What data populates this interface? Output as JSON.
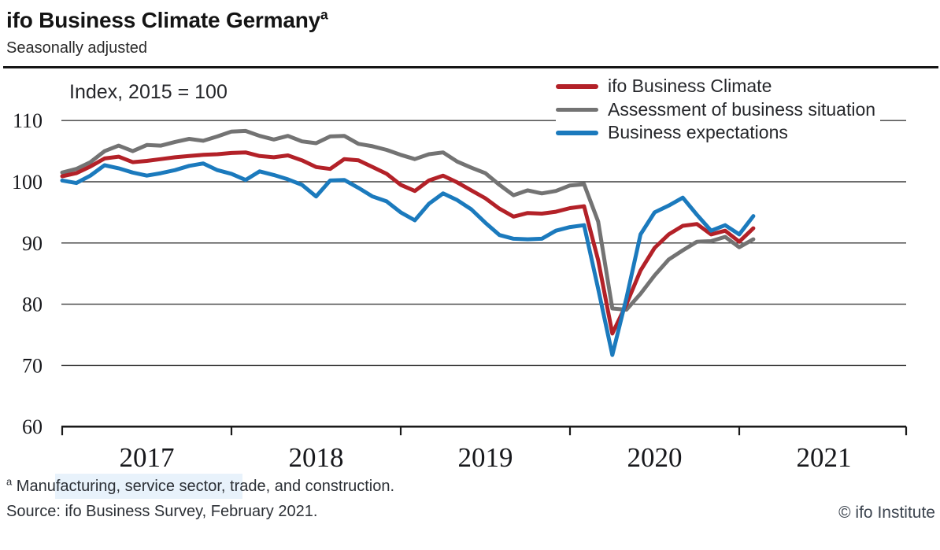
{
  "header": {
    "title": "ifo Business Climate Germany",
    "title_superscript": "a",
    "subtitle": "Seasonally adjusted"
  },
  "chart_data": {
    "type": "line",
    "unit_label": "Index, 2015 = 100",
    "frequency": "monthly",
    "x_start": "2017-01",
    "x_end": "2021-02",
    "x_tick_years": [
      "2017",
      "2018",
      "2019",
      "2020",
      "2021"
    ],
    "y_ticks": [
      110,
      100,
      90,
      80,
      70,
      60
    ],
    "ylim": [
      60,
      112
    ],
    "grid": "horizontal-only",
    "legend_position": "top-right",
    "series": [
      {
        "name": "ifo Business Climate",
        "color": "#b32128",
        "values": [
          100.9,
          101.4,
          102.5,
          103.8,
          104.1,
          103.2,
          103.4,
          103.7,
          104.0,
          104.2,
          104.4,
          104.5,
          104.7,
          104.8,
          104.2,
          104.0,
          104.3,
          103.5,
          102.4,
          102.1,
          103.7,
          103.5,
          102.4,
          101.3,
          99.5,
          98.5,
          100.2,
          101.0,
          99.9,
          98.6,
          97.3,
          95.6,
          94.3,
          94.9,
          94.8,
          95.1,
          95.7,
          96.0,
          87.2,
          75.2,
          80.0,
          85.5,
          89.2,
          91.4,
          92.8,
          93.1,
          91.4,
          92.0,
          90.2,
          92.4
        ]
      },
      {
        "name": "Assessment of business situation",
        "color": "#737373",
        "values": [
          101.5,
          102.1,
          103.2,
          105.0,
          105.9,
          105.0,
          106.0,
          105.9,
          106.5,
          107.0,
          106.7,
          107.4,
          108.2,
          108.3,
          107.5,
          106.9,
          107.5,
          106.6,
          106.3,
          107.4,
          107.5,
          106.2,
          105.8,
          105.2,
          104.4,
          103.7,
          104.5,
          104.8,
          103.3,
          102.3,
          101.4,
          99.5,
          97.8,
          98.6,
          98.1,
          98.5,
          99.4,
          99.6,
          93.5,
          79.3,
          79.1,
          81.7,
          84.7,
          87.3,
          88.8,
          90.2,
          90.3,
          91.0,
          89.3,
          90.6
        ]
      },
      {
        "name": "Business expectations",
        "color": "#1b7abd",
        "values": [
          100.2,
          99.8,
          101.0,
          102.7,
          102.2,
          101.5,
          101.0,
          101.4,
          101.9,
          102.6,
          103.0,
          101.9,
          101.3,
          100.3,
          101.7,
          101.1,
          100.4,
          99.5,
          97.6,
          100.2,
          100.3,
          99.0,
          97.6,
          96.8,
          95.0,
          93.7,
          96.4,
          98.1,
          97.0,
          95.5,
          93.3,
          91.3,
          90.7,
          90.6,
          90.7,
          92.0,
          92.6,
          92.9,
          82.5,
          71.7,
          81.0,
          91.4,
          95.0,
          96.1,
          97.4,
          94.6,
          92.0,
          92.9,
          91.4,
          94.4
        ]
      }
    ]
  },
  "footer": {
    "footnote_marker": "a",
    "footnote_text": "Manufacturing, service sector, trade, and construction.",
    "source": "Source: ifo Business Survey, February 2021.",
    "copyright": "© ifo Institute"
  }
}
